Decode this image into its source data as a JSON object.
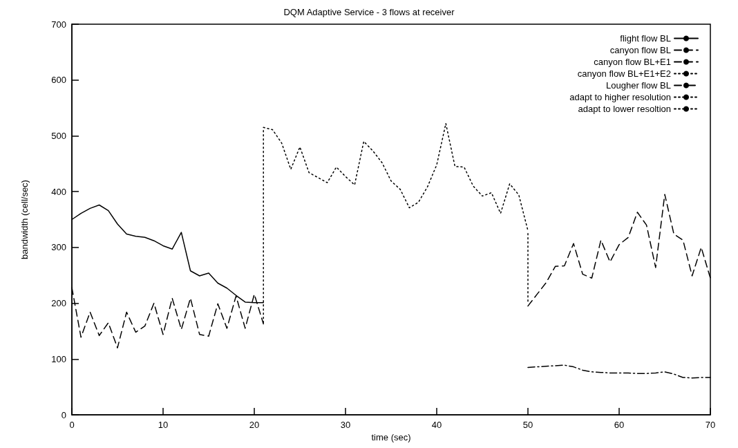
{
  "chart_data": {
    "type": "line",
    "title": "DQM Adaptive Service - 3 flows at receiver",
    "xlabel": "time (sec)",
    "ylabel": "bandwidth (cell/sec)",
    "xlim": [
      0,
      70
    ],
    "xticks": [
      0,
      10,
      20,
      30,
      40,
      50,
      60,
      70
    ],
    "ylim": [
      0,
      700
    ],
    "yticks": [
      0,
      100,
      200,
      300,
      400,
      500,
      600,
      700
    ],
    "grid": false,
    "legend": "top right",
    "marker": "none",
    "series": [
      {
        "name": "flight flow BL",
        "color": "#000000",
        "line_style": "solid",
        "x": [
          0,
          1,
          2,
          3,
          4,
          5,
          6,
          7,
          8,
          9,
          10,
          11,
          12,
          13,
          14,
          15,
          16,
          17,
          18,
          19,
          20,
          21
        ],
        "values": [
          350,
          361,
          370,
          376,
          366,
          342,
          324,
          320,
          318,
          312,
          303,
          297,
          327,
          258,
          249,
          254,
          236,
          227,
          214,
          202,
          201,
          201
        ]
      },
      {
        "name": "canyon flow BL",
        "color": "#000000",
        "line_style": "dashed",
        "x": [
          0,
          1,
          2,
          3,
          4,
          5,
          6,
          7,
          8,
          9,
          10,
          11,
          12,
          13,
          14,
          15,
          16,
          17,
          18,
          19,
          20,
          21
        ],
        "values": [
          228,
          139,
          184,
          142,
          165,
          120,
          184,
          148,
          159,
          200,
          144,
          209,
          153,
          209,
          144,
          141,
          199,
          155,
          213,
          155,
          216,
          163
        ]
      },
      {
        "name": "canyon flow BL+E1",
        "color": "#000000",
        "line_style": "dashed",
        "x": [
          50,
          51,
          52,
          53,
          54,
          55,
          56,
          57,
          58,
          59,
          60,
          61,
          62,
          63,
          64,
          65,
          66,
          67,
          68,
          69,
          70
        ],
        "values": [
          195,
          216,
          237,
          266,
          267,
          307,
          252,
          245,
          313,
          274,
          305,
          318,
          363,
          340,
          264,
          395,
          324,
          313,
          249,
          300,
          245
        ]
      },
      {
        "name": "canyon flow BL+E1+E2",
        "color": "#000000",
        "line_style": "dotted",
        "x": [
          21,
          22,
          23,
          24,
          25,
          26,
          27,
          28,
          29,
          30,
          31,
          32,
          33,
          34,
          35,
          36,
          37,
          38,
          39,
          40,
          41,
          42,
          43,
          44,
          45,
          46,
          47,
          48,
          49,
          50
        ],
        "values": [
          515,
          511,
          487,
          440,
          480,
          434,
          425,
          416,
          444,
          427,
          412,
          490,
          473,
          452,
          419,
          404,
          371,
          381,
          409,
          448,
          522,
          445,
          444,
          410,
          392,
          398,
          361,
          414,
          394,
          330
        ]
      },
      {
        "name": "Lougher flow BL",
        "color": "#000000",
        "line_style": "dashdot",
        "x": [
          50,
          51,
          52,
          53,
          54,
          55,
          56,
          57,
          58,
          59,
          60,
          61,
          62,
          63,
          64,
          65,
          66,
          67,
          68,
          69,
          70
        ],
        "values": [
          85,
          86,
          87,
          88,
          89,
          86,
          80,
          77,
          76,
          75,
          75,
          75,
          74,
          74,
          75,
          77,
          73,
          67,
          66,
          67,
          67
        ]
      },
      {
        "name": "adapt to higher resolution",
        "color": "#000000",
        "line_style": "dotted",
        "x": [
          21,
          21
        ],
        "values": [
          165,
          510
        ]
      },
      {
        "name": "adapt to lower resoltion",
        "color": "#000000",
        "line_style": "dotted",
        "x": [
          50,
          50
        ],
        "values": [
          325,
          200
        ]
      }
    ]
  }
}
